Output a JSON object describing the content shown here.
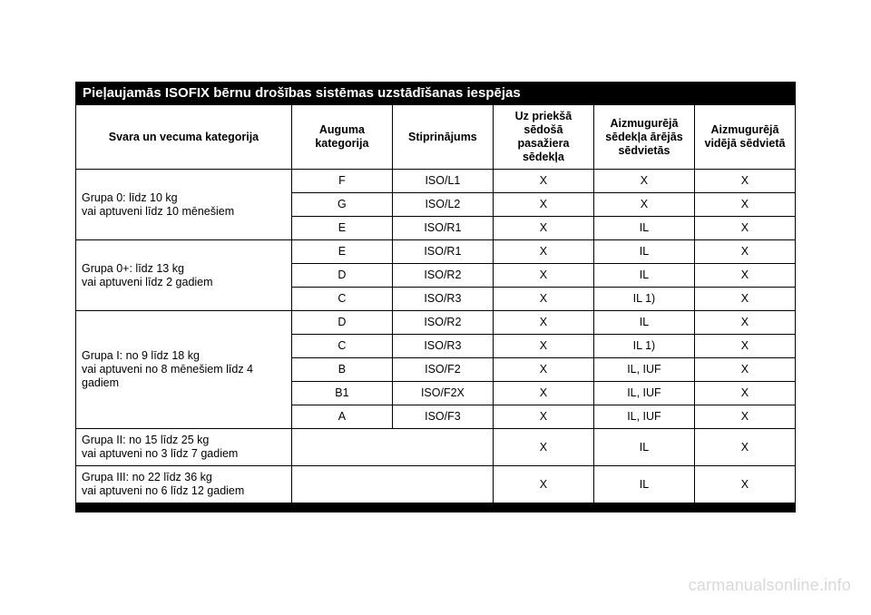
{
  "heading": "Pieļaujamās ISOFIX bērnu drošības sistēmas uzstādīšanas iespējas",
  "columns": [
    "Svara un vecuma kategorija",
    "Auguma kategorija",
    "Stiprinājums",
    "Uz priekšā sēdošā pasažiera sēdekļa",
    "Aizmugurējā sēdekļa ārējās sēdvietās",
    "Aizmugurējā vidējā sēdvietā"
  ],
  "groups": [
    {
      "label": "Grupa 0: līdz 10 kg\nvai aptuveni līdz 10 mēnešiem",
      "rows": [
        {
          "size": "F",
          "fix": "ISO/L1",
          "front": "X",
          "outer": "X",
          "center": "X"
        },
        {
          "size": "G",
          "fix": "ISO/L2",
          "front": "X",
          "outer": "X",
          "center": "X"
        },
        {
          "size": "E",
          "fix": "ISO/R1",
          "front": "X",
          "outer": "IL",
          "center": "X"
        }
      ]
    },
    {
      "label": "Grupa 0+: līdz 13 kg\nvai aptuveni līdz 2 gadiem",
      "rows": [
        {
          "size": "E",
          "fix": "ISO/R1",
          "front": "X",
          "outer": "IL",
          "center": "X"
        },
        {
          "size": "D",
          "fix": "ISO/R2",
          "front": "X",
          "outer": "IL",
          "center": "X"
        },
        {
          "size": "C",
          "fix": "ISO/R3",
          "front": "X",
          "outer": "IL 1)",
          "center": "X"
        }
      ]
    },
    {
      "label": "Grupa I: no 9 līdz 18 kg\nvai aptuveni no 8 mēnešiem līdz 4 gadiem",
      "rows": [
        {
          "size": "D",
          "fix": "ISO/R2",
          "front": "X",
          "outer": "IL",
          "center": "X"
        },
        {
          "size": "C",
          "fix": "ISO/R3",
          "front": "X",
          "outer": "IL 1)",
          "center": "X"
        },
        {
          "size": "B",
          "fix": "ISO/F2",
          "front": "X",
          "outer": "IL, IUF",
          "center": "X"
        },
        {
          "size": "B1",
          "fix": "ISO/F2X",
          "front": "X",
          "outer": "IL, IUF",
          "center": "X"
        },
        {
          "size": "A",
          "fix": "ISO/F3",
          "front": "X",
          "outer": "IL, IUF",
          "center": "X"
        }
      ]
    },
    {
      "label": "Grupa II: no 15 līdz 25 kg\nvai aptuveni no 3 līdz 7 gadiem",
      "rows": [
        {
          "size": "",
          "fix": "",
          "front": "X",
          "outer": "IL",
          "center": "X"
        }
      ]
    },
    {
      "label": "Grupa III: no 22 līdz 36 kg\nvai aptuveni no 6 līdz 12 gadiem",
      "rows": [
        {
          "size": "",
          "fix": "",
          "front": "X",
          "outer": "IL",
          "center": "X"
        }
      ]
    }
  ],
  "watermark": "carmanualsonline.info",
  "style": {
    "heading_bg": "#000000",
    "heading_fg": "#ffffff",
    "border_color": "#000000",
    "font_size_body": 12.5,
    "font_size_heading": 15,
    "watermark_color": "#d9d9d9"
  }
}
